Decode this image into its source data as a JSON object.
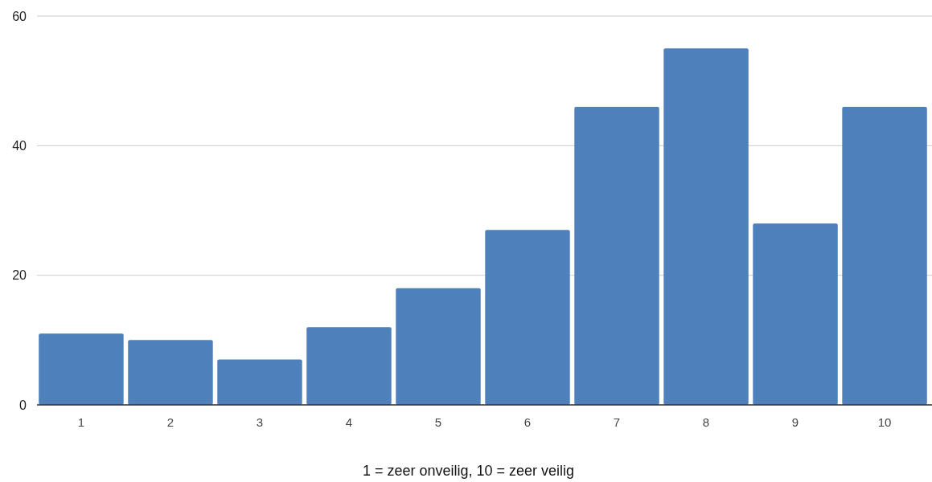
{
  "chart_data": {
    "type": "bar",
    "xlabel": "1 = zeer onveilig, 10 = zeer veilig",
    "categories": [
      "1",
      "2",
      "3",
      "4",
      "5",
      "6",
      "7",
      "8",
      "9",
      "10"
    ],
    "values": [
      11,
      10,
      7,
      12,
      18,
      27,
      46,
      55,
      28,
      46
    ],
    "color": "#4e80bc",
    "ylim": [
      0,
      60
    ],
    "yticks": [
      0,
      20,
      40,
      60
    ],
    "grid": "y"
  }
}
